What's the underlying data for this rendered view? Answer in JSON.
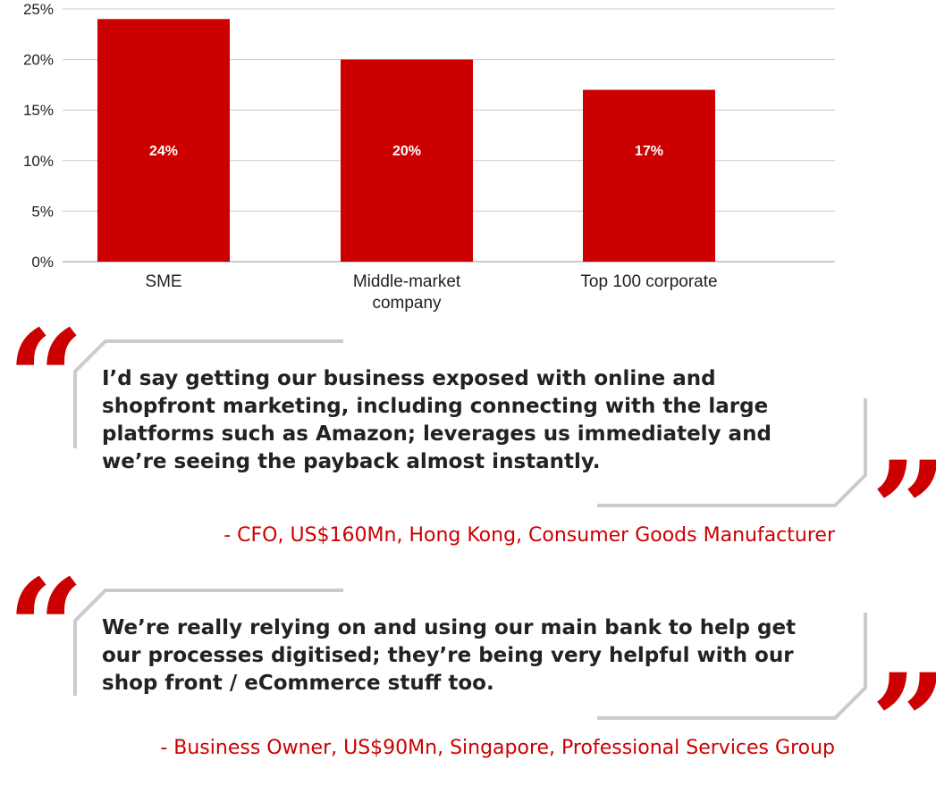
{
  "chart_data": {
    "type": "bar",
    "categories": [
      "SME",
      "Middle-market\ncompany",
      "Top 100 corporate"
    ],
    "values": [
      24,
      20,
      17
    ],
    "data_labels": [
      "24%",
      "20%",
      "17%"
    ],
    "yticks": [
      "0%",
      "5%",
      "10%",
      "15%",
      "20%",
      "25%"
    ],
    "ylim": [
      0,
      25
    ],
    "grid": true,
    "color": "#cc0000"
  },
  "quotes": [
    {
      "text": "I’d say getting our business exposed with online and shopfront marketing, including connecting with the large platforms such as Amazon; leverages us immediately and we’re seeing the payback almost instantly.",
      "attribution": "- CFO, US$160Mn, Hong Kong, Consumer Goods Manufacturer"
    },
    {
      "text": "We’re really relying on and using our main bank to help get our processes digitised; they’re being very helpful with our shop front / eCommerce stuff too.",
      "attribution": "- Business Owner, US$90Mn, Singapore, Professional Services Group"
    }
  ],
  "quote_mark_open": "“",
  "quote_mark_close": "”",
  "colors": {
    "accent": "#cc0000",
    "frame": "#c8ccd0",
    "grid": "#c8c8c8",
    "text": "#222222"
  }
}
